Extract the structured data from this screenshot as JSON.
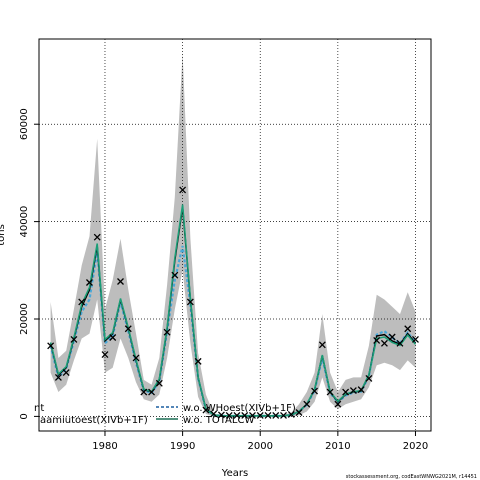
{
  "chart_data": {
    "type": "line",
    "xlabel": "Years",
    "ylabel": "tons",
    "xlim": [
      1971.5,
      2022
    ],
    "ylim": [
      -3000,
      77500
    ],
    "xticks": [
      1980,
      1990,
      2000,
      2010,
      2020
    ],
    "yticks": [
      0,
      20000,
      40000,
      60000
    ],
    "ytick_labels": [
      "0",
      "20000",
      "40000",
      "60000"
    ],
    "grid": true,
    "legend_position": "bottom-left",
    "footer": "stockassessment.org, codEastWNWG2021M, r14451",
    "band": {
      "color": "#bdbdbd",
      "years": [
        1973,
        1974,
        1975,
        1976,
        1977,
        1978,
        1979,
        1980,
        1981,
        1982,
        1983,
        1984,
        1985,
        1986,
        1987,
        1988,
        1989,
        1990,
        1991,
        1992,
        1993,
        1994,
        1995,
        1996,
        1997,
        1998,
        1999,
        2000,
        2001,
        2002,
        2003,
        2004,
        2005,
        2006,
        2007,
        2008,
        2009,
        2010,
        2011,
        2012,
        2013,
        2014,
        2015,
        2016,
        2017,
        2018,
        2019,
        2020
      ],
      "lower": [
        9000,
        5000,
        6500,
        11500,
        16000,
        17000,
        24000,
        9000,
        10000,
        16000,
        12000,
        7000,
        3500,
        3000,
        4500,
        12000,
        22000,
        30000,
        15000,
        4000,
        500,
        0,
        0,
        0,
        0,
        0,
        0,
        0,
        0,
        0,
        0,
        0,
        200,
        1000,
        3000,
        8000,
        3000,
        1500,
        2500,
        3000,
        3500,
        6000,
        10500,
        11000,
        10500,
        9500,
        11500,
        10000
      ],
      "upper": [
        23500,
        12000,
        13500,
        22000,
        31000,
        37000,
        57000,
        22000,
        28000,
        36500,
        26000,
        17000,
        7500,
        6500,
        12000,
        27000,
        45000,
        74500,
        36500,
        13000,
        4500,
        500,
        300,
        300,
        300,
        300,
        300,
        300,
        300,
        300,
        300,
        800,
        2500,
        5000,
        9000,
        21000,
        9000,
        5000,
        7500,
        8000,
        8000,
        14500,
        25000,
        24000,
        22500,
        21000,
        25500,
        21500
      ]
    },
    "series": [
      {
        "name": "aamiutoest(XIVb+1F)",
        "color": "#000000",
        "dash": "",
        "years": [
          1973,
          1974,
          1975,
          1976,
          1977,
          1978,
          1979,
          1980,
          1981,
          1982,
          1983,
          1984,
          1985,
          1986,
          1987,
          1988,
          1989,
          1990,
          1991,
          1992,
          1993,
          1994,
          1995,
          1996,
          1997,
          1998,
          1999,
          2000,
          2001,
          2002,
          2003,
          2004,
          2005,
          2006,
          2007,
          2008,
          2009,
          2010,
          2011,
          2012,
          2013,
          2014,
          2015,
          2016,
          2017,
          2018,
          2019,
          2020
        ],
        "values": [
          15000,
          8500,
          10000,
          16000,
          22500,
          26000,
          35000,
          15500,
          17000,
          24000,
          18000,
          11500,
          5500,
          5000,
          7500,
          18000,
          32000,
          43000,
          24000,
          8000,
          1500,
          300,
          100,
          100,
          100,
          100,
          100,
          100,
          100,
          100,
          100,
          300,
          1000,
          2500,
          5500,
          12500,
          5000,
          3000,
          4500,
          5000,
          5200,
          8500,
          16500,
          16800,
          15500,
          14800,
          17000,
          15000
        ]
      },
      {
        "name": "w.o. WHoest(XIVb+1F)",
        "color": "#4aa8d8",
        "dash": "3,2",
        "years": [
          1973,
          1974,
          1975,
          1976,
          1977,
          1978,
          1979,
          1980,
          1981,
          1982,
          1983,
          1984,
          1985,
          1986,
          1987,
          1988,
          1989,
          1990,
          1991,
          1992,
          1993,
          1994,
          1995,
          1996,
          1997,
          1998,
          1999,
          2000,
          2001,
          2002,
          2003,
          2004,
          2005,
          2006,
          2007,
          2008,
          2009,
          2010,
          2011,
          2012,
          2013,
          2014,
          2015,
          2016,
          2017,
          2018,
          2019,
          2020
        ],
        "values": [
          14500,
          8000,
          9800,
          15500,
          21500,
          24000,
          34000,
          15000,
          16500,
          23500,
          17500,
          11000,
          5300,
          4800,
          7200,
          17500,
          28000,
          35000,
          23000,
          7800,
          1400,
          300,
          100,
          100,
          100,
          100,
          100,
          100,
          100,
          100,
          100,
          300,
          1000,
          2400,
          5300,
          12000,
          4800,
          2900,
          4300,
          4900,
          5100,
          8300,
          16800,
          17500,
          16200,
          15000,
          17200,
          15200
        ]
      },
      {
        "name": "w.o. TOTALCW",
        "color": "#1b9e77",
        "dash": "",
        "years": [
          1973,
          1974,
          1975,
          1976,
          1977,
          1978,
          1979,
          1980,
          1981,
          1982,
          1983,
          1984,
          1985,
          1986,
          1987,
          1988,
          1989,
          1990,
          1991,
          1992,
          1993,
          1994,
          1995,
          1996,
          1997,
          1998,
          1999,
          2000,
          2001,
          2002,
          2003,
          2004,
          2005,
          2006,
          2007,
          2008,
          2009,
          2010,
          2011,
          2012,
          2013,
          2014,
          2015,
          2016,
          2017,
          2018,
          2019,
          2020
        ],
        "values": [
          15200,
          8700,
          10200,
          16200,
          23000,
          26500,
          35500,
          15800,
          17200,
          24200,
          18200,
          11700,
          5600,
          5100,
          7700,
          18300,
          32500,
          43500,
          24300,
          8100,
          1500,
          300,
          100,
          100,
          100,
          100,
          100,
          100,
          100,
          100,
          100,
          300,
          1000,
          2500,
          5600,
          12600,
          5100,
          3100,
          4600,
          5100,
          5300,
          8600,
          16000,
          16300,
          15200,
          14600,
          16700,
          14800
        ]
      },
      {
        "name": "nt",
        "color": "#000000",
        "dash": "",
        "years": [],
        "values": []
      }
    ],
    "markers": {
      "symbol": "x",
      "years": [
        1973,
        1974,
        1975,
        1976,
        1977,
        1978,
        1979,
        1980,
        1981,
        1982,
        1983,
        1984,
        1985,
        1986,
        1987,
        1988,
        1989,
        1990,
        1991,
        1992,
        1993,
        1994,
        1995,
        1996,
        1997,
        1998,
        1999,
        2000,
        2001,
        2002,
        2003,
        2004,
        2005,
        2006,
        2007,
        2008,
        2009,
        2010,
        2011,
        2012,
        2013,
        2014,
        2015,
        2016,
        2017,
        2018,
        2019,
        2020
      ],
      "values": [
        14500,
        8000,
        9000,
        15800,
        23500,
        27500,
        36800,
        12700,
        16200,
        27700,
        18000,
        12000,
        5000,
        5000,
        6800,
        17300,
        29000,
        46500,
        23500,
        11300,
        1300,
        500,
        300,
        200,
        200,
        200,
        200,
        200,
        200,
        200,
        200,
        400,
        800,
        2500,
        5200,
        14700,
        5000,
        2500,
        5000,
        5300,
        5500,
        7800,
        15600,
        15000,
        16300,
        15000,
        18000,
        15800
      ]
    }
  }
}
